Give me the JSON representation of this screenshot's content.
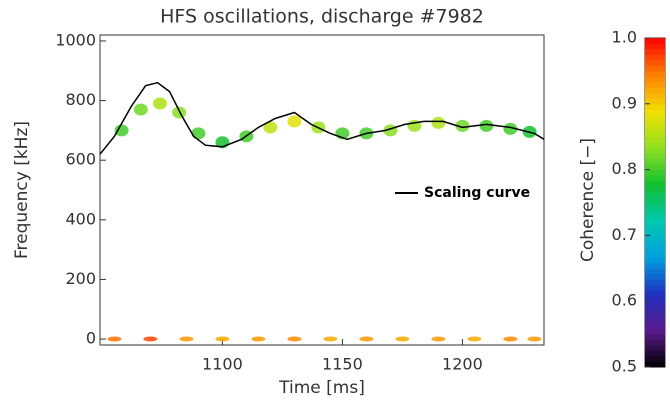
{
  "chart_data": {
    "type": "coherence",
    "title": "HFS oscillations, discharge #7982",
    "x_label": "Time [ms]",
    "y_label": "Frequency [kHz]",
    "colorbar_label": "Coherence [−]",
    "xlim": [
      1049,
      1234
    ],
    "ylim": [
      -20,
      1020
    ],
    "xticks": [
      1100,
      1150,
      1200
    ],
    "yticks": [
      0,
      200,
      400,
      600,
      800,
      1000
    ],
    "clim": [
      0.5,
      1.0
    ],
    "cticks": [
      0.5,
      0.6,
      0.7,
      0.8,
      0.9,
      {
        "value": 1.0,
        "label": "1.0"
      }
    ],
    "colormap": [
      "#000000",
      "#5a1a8c",
      "#2030c0",
      "#00a0e0",
      "#00c8b0",
      "#10c030",
      "#90e020",
      "#f0e000",
      "#ff8000",
      "#ff0000"
    ],
    "coherence": [
      {
        "x": [
          1058,
          1066,
          1074,
          1082,
          1090,
          1100,
          1110,
          1120,
          1130,
          1140,
          1150,
          1160,
          1170,
          1180,
          1190,
          1200,
          1210,
          1220,
          1228
        ],
        "y": [
          700,
          770,
          790,
          760,
          690,
          660,
          680,
          710,
          730,
          710,
          690,
          690,
          700,
          715,
          725,
          715,
          715,
          705,
          695
        ],
        "values": [
          0.8,
          0.82,
          0.85,
          0.83,
          0.8,
          0.78,
          0.8,
          0.86,
          0.88,
          0.84,
          0.8,
          0.8,
          0.83,
          0.84,
          0.85,
          0.82,
          0.8,
          0.8,
          0.78
        ]
      },
      {
        "x": [
          1055,
          1070,
          1085,
          1100,
          1115,
          1130,
          1145,
          1160,
          1175,
          1190,
          1205,
          1220,
          1230
        ],
        "y": [
          0,
          0,
          0,
          0,
          0,
          0,
          0,
          0,
          0,
          0,
          0,
          0,
          0
        ],
        "values": [
          0.95,
          0.97,
          0.93,
          0.92,
          0.93,
          0.94,
          0.92,
          0.93,
          0.92,
          0.93,
          0.92,
          0.94,
          0.93
        ]
      }
    ],
    "series": [
      {
        "name": "Scaling curve",
        "color": "#000000",
        "x": [
          1049,
          1055,
          1062,
          1068,
          1073,
          1078,
          1083,
          1088,
          1093,
          1100,
          1108,
          1115,
          1122,
          1130,
          1137,
          1145,
          1152,
          1160,
          1168,
          1176,
          1184,
          1192,
          1200,
          1210,
          1220,
          1230,
          1234
        ],
        "values": [
          620,
          680,
          780,
          850,
          860,
          830,
          750,
          680,
          650,
          645,
          670,
          710,
          740,
          760,
          720,
          690,
          670,
          690,
          700,
          720,
          730,
          730,
          710,
          720,
          710,
          690,
          670
        ]
      }
    ]
  }
}
